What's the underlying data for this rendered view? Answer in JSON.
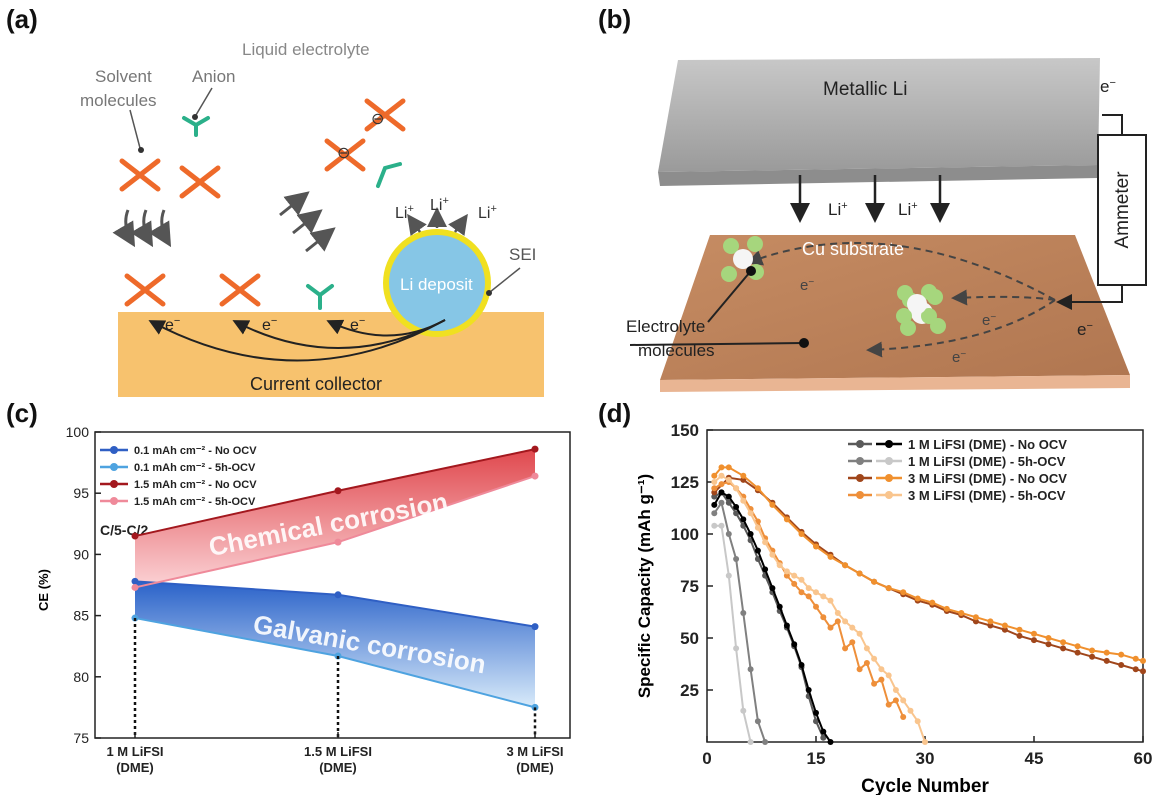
{
  "panel_labels": {
    "a": "(a)",
    "b": "(b)",
    "c": "(c)",
    "d": "(d)"
  },
  "panel_a": {
    "liquid_electrolyte": "Liquid electrolyte",
    "solvent_line1": "Solvent",
    "solvent_line2": "molecules",
    "anion": "Anion",
    "li_plus": "Li",
    "plus": "+",
    "sei": "SEI",
    "li_deposit": "Li deposit",
    "electron": "e",
    "minus": "−",
    "anion_charge": "⊖",
    "current_collector": "Current collector"
  },
  "panel_b": {
    "metallic_li": "Metallic Li",
    "cu_substrate": "Cu substrate",
    "ammeter": "Ammeter",
    "electrolyte_line1": "Electrolyte",
    "electrolyte_line2": "molecules",
    "li_plus": "Li",
    "plus": "+",
    "electron": "e",
    "minus": "−"
  },
  "panel_c": {
    "chart_data": {
      "type": "line",
      "categories": [
        [
          "1 M LiFSI",
          "(DME)"
        ],
        [
          "1.5 M LiFSI",
          "(DME)"
        ],
        [
          "3 M LiFSI",
          "(DME)"
        ]
      ],
      "ylabel": "CE (%)",
      "ylim": [
        75,
        100
      ],
      "yticks": [
        75,
        80,
        85,
        90,
        95,
        100
      ],
      "condition": "C/5-C/2",
      "legend_position": "top-left",
      "series": [
        {
          "name": "0.1 mAh cm⁻² - No OCV",
          "color": "#2f5fc4",
          "values": [
            87.8,
            86.7,
            84.1
          ]
        },
        {
          "name": "0.1 mAh cm⁻² - 5h-OCV",
          "color": "#4ea3e0",
          "values": [
            84.8,
            81.7,
            77.5
          ]
        },
        {
          "name": "1.5 mAh cm⁻² - No OCV",
          "color": "#a3181e",
          "values": [
            91.5,
            95.2,
            98.6
          ]
        },
        {
          "name": "1.5 mAh cm⁻² - 5h-OCV",
          "color": "#ef8a9a",
          "values": [
            87.3,
            91.0,
            96.4
          ]
        }
      ],
      "annotations": [
        "Chemical corrosion",
        "Galvanic corrosion"
      ]
    }
  },
  "panel_d": {
    "chart_data": {
      "type": "line",
      "xlabel": "Cycle Number",
      "ylabel": "Specific Capacity (mAh g⁻¹)",
      "xlim": [
        0,
        60
      ],
      "ylim": [
        0,
        150
      ],
      "xticks": [
        0,
        15,
        30,
        45,
        60
      ],
      "yticks": [
        25,
        50,
        75,
        100,
        125,
        150
      ],
      "legend_position": "top-right",
      "series": [
        {
          "name": "1 M LiFSI (DME) - No OCV",
          "color": "#5a5a5a",
          "x": [
            1,
            2,
            3,
            4,
            5,
            6,
            7,
            8,
            9,
            10,
            11,
            12,
            13,
            14,
            15,
            16
          ],
          "y": [
            118,
            120,
            115,
            110,
            104,
            97,
            88,
            80,
            72,
            63,
            55,
            46,
            36,
            22,
            10,
            2
          ]
        },
        {
          "name": "1 M LiFSI (DME) - No OCV",
          "color": "#000000",
          "x": [
            1,
            2,
            3,
            4,
            5,
            6,
            7,
            8,
            9,
            10,
            11,
            12,
            13,
            14,
            15,
            16,
            17
          ],
          "y": [
            114,
            120,
            118,
            113,
            107,
            100,
            92,
            83,
            74,
            65,
            56,
            47,
            37,
            25,
            14,
            5,
            0
          ]
        },
        {
          "name": "1 M LiFSI (DME) - 5h-OCV",
          "color": "#808080",
          "x": [
            1,
            2,
            3,
            4,
            5,
            6,
            7,
            8
          ],
          "y": [
            110,
            115,
            100,
            88,
            62,
            35,
            10,
            0
          ]
        },
        {
          "name": "1 M LiFSI (DME) - 5h-OCV",
          "color": "#c8c8c8",
          "x": [
            1,
            2,
            3,
            4,
            5,
            6
          ],
          "y": [
            104,
            104,
            80,
            45,
            15,
            0
          ]
        },
        {
          "name": "3 M LiFSI (DME) - No OCV",
          "color": "#a0461b",
          "x": [
            1,
            3,
            5,
            7,
            9,
            11,
            13,
            15,
            17,
            19,
            21,
            23,
            25,
            27,
            29,
            31,
            33,
            35,
            37,
            39,
            41,
            43,
            45,
            47,
            49,
            51,
            53,
            55,
            57,
            59,
            60
          ],
          "y": [
            120,
            127,
            126,
            121,
            115,
            108,
            101,
            95,
            90,
            85,
            81,
            77,
            74,
            71,
            68,
            66,
            63,
            61,
            58,
            56,
            54,
            51,
            49,
            47,
            45,
            43,
            41,
            39,
            37,
            35,
            34
          ]
        },
        {
          "name": "3 M LiFSI (DME) - No OCV",
          "color": "#f0902e",
          "x": [
            1,
            2,
            3,
            5,
            7,
            9,
            11,
            13,
            15,
            17,
            19,
            21,
            23,
            25,
            27,
            29,
            31,
            33,
            35,
            37,
            39,
            41,
            43,
            45,
            47,
            49,
            51,
            53,
            55,
            57,
            59,
            60
          ],
          "y": [
            128,
            132,
            132,
            128,
            122,
            114,
            107,
            100,
            94,
            89,
            85,
            81,
            77,
            74,
            72,
            69,
            67,
            64,
            62,
            60,
            58,
            56,
            54,
            52,
            50,
            48,
            46,
            44,
            43,
            42,
            40,
            39
          ]
        },
        {
          "name": "3 M LiFSI (DME) - 5h-OCV",
          "color": "#ee8f3a",
          "x": [
            1,
            2,
            3,
            4,
            5,
            6,
            7,
            8,
            9,
            10,
            11,
            12,
            13,
            14,
            15,
            16,
            17,
            18,
            19,
            20,
            21,
            22,
            23,
            24,
            25,
            26,
            27
          ],
          "y": [
            122,
            124,
            125,
            122,
            118,
            112,
            106,
            98,
            92,
            86,
            80,
            76,
            72,
            70,
            65,
            60,
            55,
            58,
            45,
            48,
            35,
            38,
            28,
            30,
            18,
            20,
            12
          ]
        },
        {
          "name": "3 M LiFSI (DME) - 5h-OCV",
          "color": "#f9c58e",
          "x": [
            1,
            2,
            3,
            4,
            5,
            6,
            7,
            8,
            9,
            10,
            11,
            12,
            13,
            14,
            15,
            16,
            17,
            18,
            19,
            20,
            21,
            22,
            23,
            24,
            25,
            26,
            27,
            28,
            29,
            30
          ],
          "y": [
            125,
            128,
            126,
            122,
            116,
            110,
            103,
            96,
            90,
            85,
            82,
            80,
            78,
            74,
            72,
            70,
            68,
            62,
            58,
            55,
            52,
            45,
            40,
            35,
            32,
            25,
            20,
            15,
            10,
            0
          ]
        }
      ],
      "legend": [
        {
          "label": "1 M LiFSI (DME) - No OCV",
          "colors": [
            "#5a5a5a",
            "#000000"
          ]
        },
        {
          "label": "1 M LiFSI (DME) - 5h-OCV",
          "colors": [
            "#808080",
            "#c8c8c8"
          ]
        },
        {
          "label": "3 M LiFSI (DME) - No OCV",
          "colors": [
            "#a0461b",
            "#f0902e"
          ]
        },
        {
          "label": "3 M LiFSI (DME) - 5h-OCV",
          "colors": [
            "#ee8f3a",
            "#f9c58e"
          ]
        }
      ]
    }
  }
}
